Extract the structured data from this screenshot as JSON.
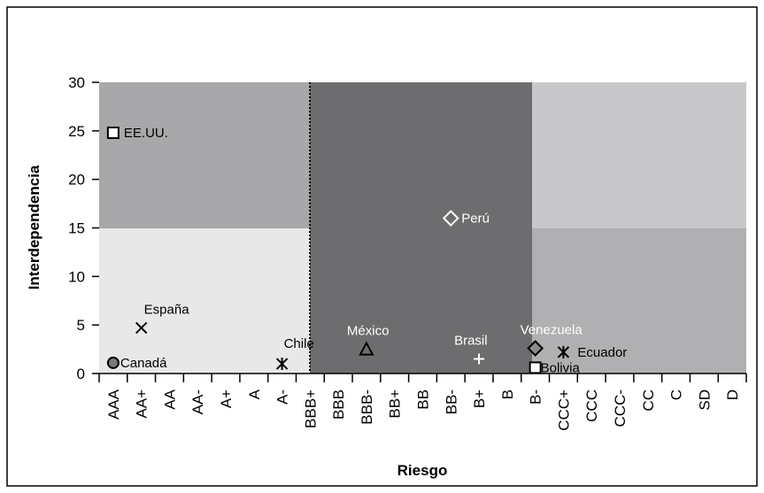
{
  "chart_data": {
    "type": "scatter",
    "x_label": "Riesgo",
    "y_label": "Interdependencia",
    "categories": [
      "AAA",
      "AA+",
      "AA",
      "AA-",
      "A+",
      "A",
      "A-",
      "BBB+",
      "BBB",
      "BBB-",
      "BB+",
      "BB",
      "BB-",
      "B+",
      "B",
      "B-",
      "CCC+",
      "CCC",
      "CCC-",
      "CC",
      "C",
      "SD",
      "D"
    ],
    "ylim": [
      0,
      30
    ],
    "yticks": [
      0,
      5,
      10,
      15,
      20,
      25,
      30
    ],
    "points": [
      {
        "label": "EE.UU.",
        "x": "AAA",
        "y": 24.8,
        "marker": "square",
        "color": "#000",
        "fill": "#fff"
      },
      {
        "label": "España",
        "x": "AA+",
        "y": 4.7,
        "marker": "x",
        "color": "#000",
        "fill": "none"
      },
      {
        "label": "Canadá",
        "x": "AAA",
        "y": 1.1,
        "marker": "circle",
        "color": "#000",
        "fill": "#7a7a7a"
      },
      {
        "label": "Chile",
        "x": "A-",
        "y": 1.0,
        "marker": "asterisk",
        "color": "#000",
        "fill": "none"
      },
      {
        "label": "México",
        "x": "BBB-",
        "y": 2.5,
        "marker": "triangle",
        "color": "#000",
        "fill": "none"
      },
      {
        "label": "Perú",
        "x": "BB-",
        "y": 16,
        "marker": "diamond",
        "color": "#fff",
        "fill": "#6d6d6f"
      },
      {
        "label": "Brasil",
        "x": "B+",
        "y": 1.5,
        "marker": "plus",
        "color": "#fff",
        "fill": "none"
      },
      {
        "label": "Venezuela",
        "x": "B-",
        "y": 2.6,
        "marker": "diamond",
        "color": "#000",
        "fill": "#8a8a8a"
      },
      {
        "label": "Ecuador",
        "x": "CCC+",
        "y": 2.2,
        "marker": "asterisk",
        "color": "#000",
        "fill": "none"
      },
      {
        "label": "Bolivia",
        "x": "B-",
        "y": 0.6,
        "marker": "square",
        "color": "#000",
        "fill": "#fff"
      }
    ]
  }
}
